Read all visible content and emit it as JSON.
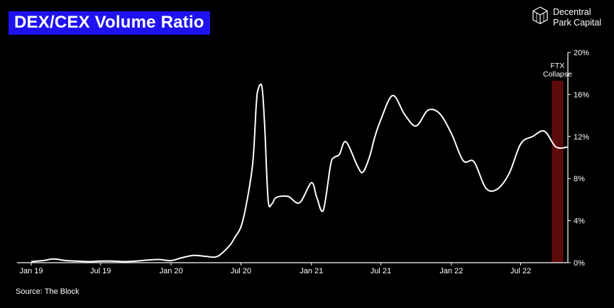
{
  "header": {
    "title": "DEX/CEX Volume Ratio",
    "brand_line1": "Decentral",
    "brand_line2": "Park Capital"
  },
  "footer": {
    "source": "Source: The Block"
  },
  "chart_data": {
    "type": "line",
    "title": "DEX/CEX Volume Ratio",
    "xlabel": "",
    "ylabel": "",
    "ylim": [
      0,
      20
    ],
    "y_unit": "%",
    "yticks": [
      "0%",
      "4%",
      "8%",
      "12%",
      "16%",
      "20%"
    ],
    "xticks": [
      "Jan 19",
      "Jul 19",
      "Jan 20",
      "Jul 20",
      "Jan 21",
      "Jul 21",
      "Jan 22",
      "Jul 22"
    ],
    "xlim": [
      "2019-01",
      "2022-11"
    ],
    "grid": false,
    "line_color": "#ffffff",
    "series": [
      {
        "x": [
          "2019-01-01",
          "2019-02-01",
          "2019-03-01",
          "2019-04-01",
          "2019-05-01",
          "2019-06-01",
          "2019-07-01",
          "2019-08-01",
          "2019-09-01",
          "2019-10-01",
          "2019-11-01",
          "2019-12-01",
          "2020-01-01",
          "2020-02-01",
          "2020-03-01",
          "2020-04-01",
          "2020-05-01",
          "2020-06-01",
          "2020-06-15",
          "2020-07-01",
          "2020-07-15",
          "2020-08-01",
          "2020-08-10",
          "2020-08-15",
          "2020-08-25",
          "2020-09-01",
          "2020-09-10",
          "2020-09-20",
          "2020-10-01",
          "2020-11-01",
          "2020-12-01",
          "2021-01-01",
          "2021-01-15",
          "2021-02-01",
          "2021-02-20",
          "2021-03-01",
          "2021-03-15",
          "2021-04-01",
          "2021-05-01",
          "2021-05-15",
          "2021-06-01",
          "2021-06-15",
          "2021-07-01",
          "2021-08-01",
          "2021-09-01",
          "2021-10-01",
          "2021-11-01",
          "2021-12-01",
          "2022-01-01",
          "2022-02-01",
          "2022-03-01",
          "2022-04-01",
          "2022-05-01",
          "2022-06-01",
          "2022-07-01",
          "2022-08-01",
          "2022-09-01",
          "2022-10-01",
          "2022-11-01"
        ],
        "values": [
          0.1,
          0.2,
          0.35,
          0.2,
          0.15,
          0.1,
          0.15,
          0.15,
          0.1,
          0.15,
          0.25,
          0.3,
          0.2,
          0.5,
          0.7,
          0.6,
          0.6,
          1.6,
          2.4,
          3.4,
          5.5,
          9.5,
          15,
          16.5,
          16.7,
          13,
          6,
          5.6,
          6.2,
          6.3,
          5.7,
          7.6,
          6.2,
          5.0,
          9.3,
          10,
          10.3,
          11.5,
          9.2,
          8.6,
          10,
          11.9,
          13.6,
          15.9,
          14.1,
          13.0,
          14.5,
          14.2,
          12.3,
          9.7,
          9.6,
          7.1,
          7.0,
          8.5,
          11.3,
          12.0,
          12.5,
          11.0,
          11.0
        ]
      }
    ],
    "annotations": [
      {
        "label_line1": "FTX",
        "label_line2": "Collapse",
        "x_start": "2022-09-20",
        "x_end": "2022-10-20",
        "color": "#5c0a0a"
      }
    ]
  }
}
